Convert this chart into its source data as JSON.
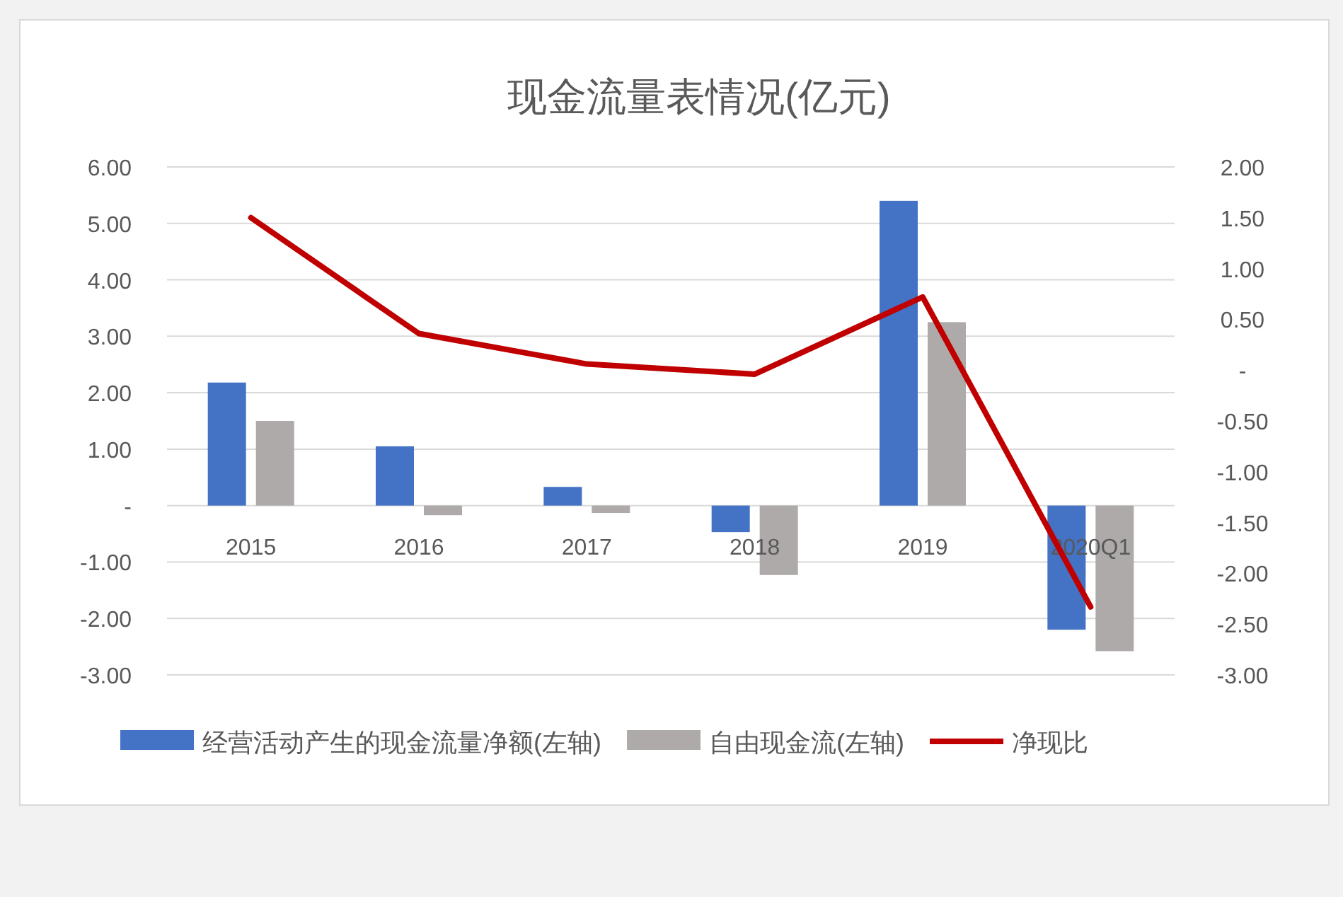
{
  "chart_data": {
    "type": "bar",
    "title": "现金流量表情况(亿元)",
    "categories": [
      "2015",
      "2016",
      "2017",
      "2018",
      "2019",
      "2020Q1"
    ],
    "series": [
      {
        "name": "经营活动产生的现金流量净额(左轴)",
        "color": "#4472c4",
        "values": [
          2.18,
          1.05,
          0.33,
          -0.47,
          5.4,
          -2.2
        ]
      },
      {
        "name": "自由现金流(左轴)",
        "color": "#aeaaaa",
        "values": [
          1.5,
          -0.17,
          -0.13,
          -1.23,
          3.25,
          -2.58
        ]
      },
      {
        "name": "净现比",
        "type": "line",
        "axis": "y2",
        "color": "#c00000",
        "values": [
          1.5,
          0.36,
          0.06,
          -0.04,
          0.72,
          -2.33
        ]
      }
    ],
    "ylim": [
      -3,
      6
    ],
    "yticks": [
      {
        "value": 6,
        "label": "6.00"
      },
      {
        "value": 5,
        "label": "5.00"
      },
      {
        "value": 4,
        "label": "4.00"
      },
      {
        "value": 3,
        "label": "3.00"
      },
      {
        "value": 2,
        "label": "2.00"
      },
      {
        "value": 1,
        "label": "1.00"
      },
      {
        "value": 0,
        "label": "-"
      },
      {
        "value": -1,
        "label": "-1.00"
      },
      {
        "value": -2,
        "label": "-2.00"
      },
      {
        "value": -3,
        "label": "-3.00"
      }
    ],
    "y2lim": [
      -3,
      2
    ],
    "y2ticks": [
      {
        "value": 2,
        "label": "2.00"
      },
      {
        "value": 1.5,
        "label": "1.50"
      },
      {
        "value": 1,
        "label": "1.00"
      },
      {
        "value": 0.5,
        "label": "0.50"
      },
      {
        "value": 0,
        "label": "-"
      },
      {
        "value": -0.5,
        "label": "-0.50"
      },
      {
        "value": -1,
        "label": "-1.00"
      },
      {
        "value": -1.5,
        "label": "-1.50"
      },
      {
        "value": -2,
        "label": "-2.00"
      },
      {
        "value": -2.5,
        "label": "-2.50"
      },
      {
        "value": -3,
        "label": "-3.00"
      }
    ],
    "grid": "y",
    "legend": "bottom"
  }
}
